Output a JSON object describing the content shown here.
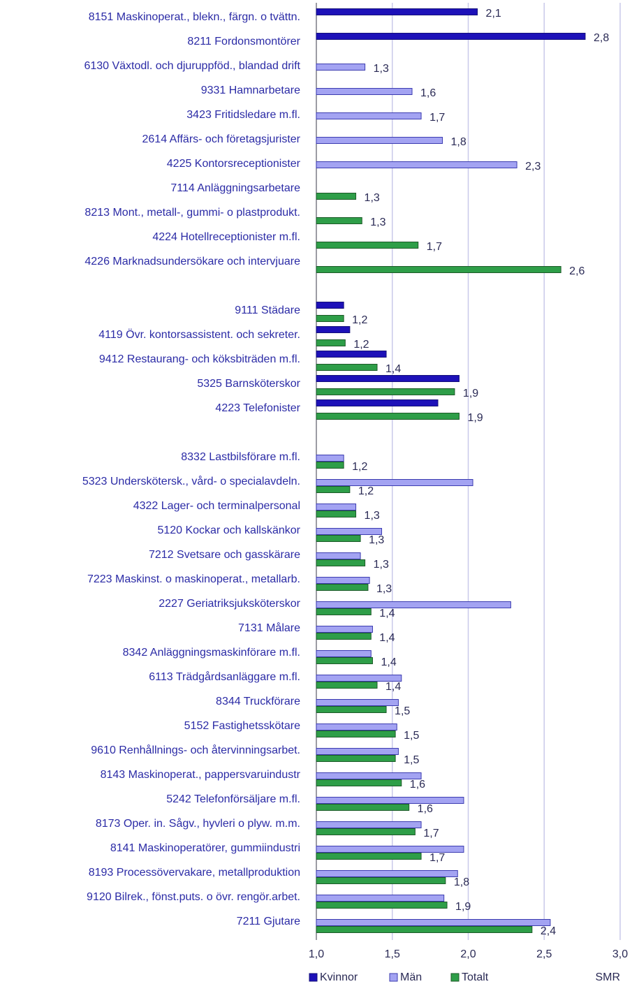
{
  "chart_data": {
    "type": "hbar",
    "xlabel": "SMR",
    "categories": [
      "8151 Maskinoperat., blekn., färgn. o tvättn.",
      "8211 Fordonsmontörer",
      "6130 Växtodl. och djuruppföd., blandad drift",
      "9331 Hamnarbetare",
      "3423 Fritidsledare m.fl.",
      "2614 Affärs- och företagsjurister",
      "4225 Kontorsreceptionister",
      "7114 Anläggningsarbetare",
      "8213 Mont., metall-, gummi- o plastprodukt.",
      "4224 Hotellreceptionister m.fl.",
      "4226 Marknadsundersökare och intervjuare",
      null,
      "9111 Städare",
      "4119 Övr. kontorsassistent. och sekreter.",
      "9412 Restaurang- och köksbiträden m.fl.",
      "5325 Barnsköterskor",
      "4223 Telefonister",
      null,
      "8332 Lastbilsförare m.fl.",
      "5323 Underskötersk., vård- o specialavdeln.",
      "4322 Lager- och terminalpersonal",
      "5120 Kockar och kallskänkor",
      "7212 Svetsare och gasskärare",
      "7223 Maskinst. o maskinoperat., metallarb.",
      "2227 Geriatriksjuksköterskor",
      "7131 Målare",
      "8342 Anläggningsmaskinförare m.fl.",
      "6113 Trädgårdsanläggare m.fl.",
      "8344 Truckförare",
      "5152 Fastighetsskötare",
      "9610 Renhållnings- och återvinningsarbet.",
      "8143 Maskinoperat., pappersvaruindustr",
      "5242 Telefonförsäljare m.fl.",
      "8173 Oper. in. Sågv., hyvleri o plyw. m.m.",
      "8141 Maskinoperatörer, gummiindustri",
      "8193 Processövervakare, metallproduktion",
      "9120 Bilrek., fönst.puts. o övr. rengör.arbet.",
      "7211 Gjutare"
    ],
    "series": [
      {
        "name": "Kvinnor",
        "color": "#1d11b8",
        "border": "#14107a",
        "values": [
          2.06,
          2.77,
          null,
          null,
          null,
          null,
          null,
          null,
          null,
          null,
          null,
          null,
          1.18,
          1.22,
          1.46,
          1.94,
          1.8,
          null,
          null,
          null,
          null,
          null,
          null,
          null,
          null,
          null,
          null,
          null,
          null,
          null,
          null,
          null,
          null,
          null,
          null,
          null,
          null,
          null
        ],
        "value_labels": [
          "2,1",
          "2,8",
          null,
          null,
          null,
          null,
          null,
          null,
          null,
          null,
          null,
          null,
          null,
          null,
          null,
          null,
          null,
          null,
          null,
          null,
          null,
          null,
          null,
          null,
          null,
          null,
          null,
          null,
          null,
          null,
          null,
          null,
          null,
          null,
          null,
          null,
          null,
          null
        ]
      },
      {
        "name": "Män",
        "color": "#a3a3f2",
        "border": "#3c3cb0",
        "values": [
          null,
          null,
          1.32,
          1.63,
          1.69,
          1.83,
          2.32,
          null,
          null,
          null,
          null,
          null,
          null,
          null,
          null,
          null,
          null,
          null,
          1.18,
          2.03,
          1.26,
          1.43,
          1.29,
          1.35,
          2.28,
          1.37,
          1.36,
          1.56,
          1.54,
          1.53,
          1.54,
          1.69,
          1.97,
          1.69,
          1.97,
          1.93,
          1.84,
          2.54
        ],
        "value_labels": [
          null,
          null,
          "1,3",
          "1,6",
          "1,7",
          "1,8",
          "2,3",
          null,
          null,
          null,
          null,
          null,
          null,
          null,
          null,
          null,
          null,
          null,
          null,
          null,
          null,
          null,
          null,
          null,
          null,
          null,
          null,
          null,
          null,
          null,
          null,
          null,
          null,
          null,
          null,
          null,
          null,
          null
        ]
      },
      {
        "name": "Totalt",
        "color": "#2e9e48",
        "border": "#1d5a28",
        "values": [
          null,
          null,
          null,
          null,
          null,
          null,
          null,
          1.26,
          1.3,
          1.67,
          2.61,
          null,
          1.18,
          1.19,
          1.4,
          1.91,
          1.94,
          null,
          1.18,
          1.22,
          1.26,
          1.29,
          1.32,
          1.34,
          1.36,
          1.36,
          1.37,
          1.4,
          1.46,
          1.52,
          1.52,
          1.56,
          1.61,
          1.65,
          1.69,
          1.85,
          1.86,
          2.42
        ],
        "value_labels": [
          null,
          null,
          null,
          null,
          null,
          null,
          null,
          "1,3",
          "1,3",
          "1,7",
          "2,6",
          null,
          "1,2",
          "1,2",
          "1,4",
          "1,9",
          "1,9",
          null,
          "1,2",
          "1,2",
          "1,3",
          "1,3",
          "1,3",
          "1,3",
          "1,4",
          "1,4",
          "1,4",
          "1,4",
          "1,5",
          "1,5",
          "1,5",
          "1,6",
          "1,6",
          "1,7",
          "1,7",
          "1,8",
          "1,9",
          "2,4"
        ]
      }
    ],
    "xlim": [
      1,
      3
    ],
    "xticks": [
      {
        "value": 1,
        "label": "1,0"
      },
      {
        "value": 1.5,
        "label": "1,5"
      },
      {
        "value": 2,
        "label": "2,0"
      },
      {
        "value": 2.5,
        "label": "2,5"
      },
      {
        "value": 3,
        "label": "3,0"
      }
    ],
    "grid": true,
    "grid_color": "#c9c9ea",
    "legend": "bottom"
  }
}
